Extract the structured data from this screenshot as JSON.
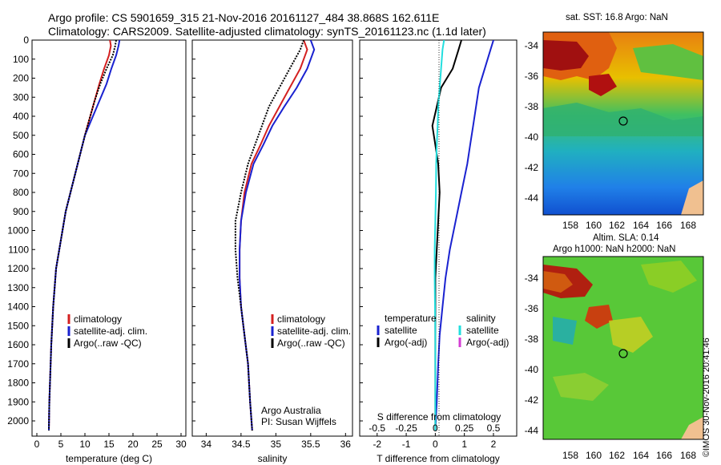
{
  "header": {
    "line1": "Argo profile: CS 5901659_315 21-Nov-2016 20161127_484 38.868S 162.611E",
    "line2": "Climatology: CARS2009. Satellite-adjusted climatology: synTS_20161123.nc (1.1d later)"
  },
  "side_stamp": "©IMOS 30-Nov-2016 20:41:46",
  "colors": {
    "red": "#d42020",
    "blue": "#1a22d0",
    "black": "#000000",
    "cyan": "#22dede",
    "magenta": "#d43cd4"
  },
  "chart_data": [
    {
      "type": "line",
      "xlabel": "temperature (deg C)",
      "ylabel": "",
      "xlim": [
        -1,
        31
      ],
      "ylim": [
        2080,
        0
      ],
      "xticks": [
        0,
        5,
        10,
        15,
        20,
        25,
        30
      ],
      "yticks": [
        0,
        100,
        200,
        300,
        400,
        500,
        600,
        700,
        800,
        900,
        1000,
        1100,
        1200,
        1300,
        1400,
        1500,
        1600,
        1700,
        1800,
        1900,
        2000
      ],
      "legend": [
        "climatology",
        "satellite-adj. clim.",
        "Argo(..raw -QC)"
      ],
      "series": [
        {
          "name": "climatology",
          "color": "red",
          "x": [
            15.2,
            15.4,
            15.0,
            14.0,
            13.0,
            12.0,
            11.0,
            10.0,
            9.0,
            7.5,
            6.0,
            5.0,
            4.0,
            3.4,
            3.0,
            2.6,
            2.5
          ],
          "y": [
            0,
            30,
            80,
            150,
            230,
            320,
            410,
            500,
            600,
            750,
            900,
            1050,
            1200,
            1400,
            1600,
            1900,
            2050
          ]
        },
        {
          "name": "satellite-adj. clim.",
          "color": "blue",
          "x": [
            17.2,
            17.0,
            16.5,
            15.5,
            14.5,
            13.0,
            11.5,
            10.0,
            9.0,
            7.5,
            6.0,
            5.0,
            4.0,
            3.4,
            3.0,
            2.6,
            2.5
          ],
          "y": [
            0,
            30,
            80,
            150,
            230,
            320,
            410,
            500,
            600,
            750,
            900,
            1050,
            1200,
            1400,
            1600,
            1900,
            2050
          ]
        },
        {
          "name": "Argo(..raw -QC)",
          "color": "black",
          "x": [
            16.5,
            16.3,
            15.8,
            14.5,
            13.2,
            12.0,
            11.0,
            10.0,
            9.0,
            7.5,
            6.0,
            5.0,
            4.0,
            3.4,
            3.0,
            2.6,
            2.5
          ],
          "y": [
            0,
            30,
            80,
            150,
            230,
            320,
            410,
            500,
            600,
            750,
            900,
            1050,
            1200,
            1400,
            1600,
            1900,
            2050
          ]
        }
      ]
    },
    {
      "type": "line",
      "xlabel": "salinity",
      "ylabel": "",
      "xlim": [
        33.8,
        36.1
      ],
      "ylim": [
        2080,
        0
      ],
      "xticks": [
        34,
        34.5,
        35,
        35.5,
        36
      ],
      "legend": [
        "climatology",
        "satellite-adj. clim.",
        "Argo(..raw -QC)"
      ],
      "annotations": [
        "Argo Australia",
        "PI: Susan Wijffels"
      ],
      "series": [
        {
          "name": "climatology",
          "color": "red",
          "x": [
            35.4,
            35.45,
            35.35,
            35.2,
            35.05,
            34.9,
            34.78,
            34.65,
            34.55,
            34.5,
            34.48,
            34.48,
            34.5,
            34.55,
            34.6,
            34.63,
            34.66
          ],
          "y": [
            0,
            50,
            150,
            250,
            350,
            450,
            550,
            650,
            800,
            950,
            1100,
            1250,
            1400,
            1550,
            1700,
            1900,
            2050
          ]
        },
        {
          "name": "satellite-adj. clim.",
          "color": "blue",
          "x": [
            35.5,
            35.55,
            35.45,
            35.3,
            35.12,
            34.95,
            34.82,
            34.68,
            34.57,
            34.5,
            34.48,
            34.48,
            34.5,
            34.55,
            34.6,
            34.63,
            34.66
          ],
          "y": [
            0,
            50,
            150,
            250,
            350,
            450,
            550,
            650,
            800,
            950,
            1100,
            1250,
            1400,
            1550,
            1700,
            1900,
            2050
          ]
        },
        {
          "name": "Argo(..raw -QC)",
          "color": "black",
          "x": [
            35.4,
            35.35,
            35.2,
            35.05,
            34.9,
            34.8,
            34.7,
            34.6,
            34.5,
            34.42,
            34.42,
            34.45,
            34.5,
            34.55,
            34.6,
            34.63,
            34.66
          ],
          "y": [
            0,
            50,
            150,
            250,
            350,
            450,
            550,
            650,
            800,
            950,
            1100,
            1250,
            1400,
            1550,
            1700,
            1900,
            2050
          ]
        }
      ]
    },
    {
      "type": "line",
      "xlabel": "T difference from climatology",
      "ylabel": "",
      "xlim": [
        -2.6,
        2.8
      ],
      "ylim": [
        2080,
        0
      ],
      "xticks": [
        -2,
        -1,
        0,
        1,
        2
      ],
      "x2label": "S difference from climatology",
      "x2ticks": [
        "-0.5",
        "-0.25",
        "0",
        "0.25",
        "0.5"
      ],
      "legend_left": {
        "title": "temperature",
        "items": [
          "satellite",
          "Argo(-adj)"
        ]
      },
      "legend_right": {
        "title": "salinity",
        "items": [
          "satellite",
          "Argo(-adj)"
        ]
      },
      "series": [
        {
          "name": "temperature satellite",
          "color": "blue",
          "x": [
            2.0,
            1.9,
            1.7,
            1.5,
            1.4,
            1.3,
            1.2,
            1.1,
            0.9,
            0.7,
            0.5,
            0.35,
            0.25,
            0.15,
            0.1,
            0.05,
            0.0
          ],
          "y": [
            0,
            50,
            150,
            250,
            350,
            450,
            550,
            650,
            800,
            950,
            1100,
            1250,
            1400,
            1550,
            1700,
            1900,
            2050
          ]
        },
        {
          "name": "temperature Argo(-adj)",
          "color": "black",
          "x": [
            0.9,
            0.8,
            0.6,
            0.2,
            0.05,
            -0.1,
            0.0,
            0.1,
            0.15,
            0.1,
            0.05,
            0.0,
            0.0,
            0.0,
            0.0,
            0.0,
            0.0
          ],
          "y": [
            0,
            50,
            150,
            250,
            350,
            450,
            550,
            650,
            800,
            950,
            1100,
            1250,
            1400,
            1550,
            1700,
            1900,
            2050
          ]
        },
        {
          "name": "salinity satellite",
          "color": "cyan",
          "x": [
            0.3,
            0.25,
            0.2,
            0.15,
            0.1,
            0.08,
            0.05,
            0.03,
            0.02,
            0.0,
            -0.02,
            -0.02,
            -0.01,
            0.0,
            0.0,
            0.0,
            0.0
          ],
          "y": [
            0,
            50,
            150,
            250,
            350,
            450,
            550,
            650,
            800,
            950,
            1100,
            1250,
            1400,
            1550,
            1700,
            1900,
            2050
          ]
        }
      ]
    }
  ],
  "maps": [
    {
      "title": "sat. SST: 16.8 Argo: NaN",
      "yticks": [
        "-34",
        "-36",
        "-38",
        "-40",
        "-42",
        "-44"
      ],
      "xticks": [
        "158",
        "160",
        "162",
        "164",
        "166",
        "168"
      ],
      "marker": {
        "lon": 162.611,
        "lat": -38.868
      }
    },
    {
      "title_line1": "Altim. SLA: 0.14",
      "title_line2": "Argo h1000: NaN h2000: NaN",
      "yticks": [
        "-34",
        "-36",
        "-38",
        "-40",
        "-42",
        "-44"
      ],
      "xticks": [
        "158",
        "160",
        "162",
        "164",
        "166",
        "168"
      ],
      "marker": {
        "lon": 162.611,
        "lat": -38.868
      }
    }
  ]
}
